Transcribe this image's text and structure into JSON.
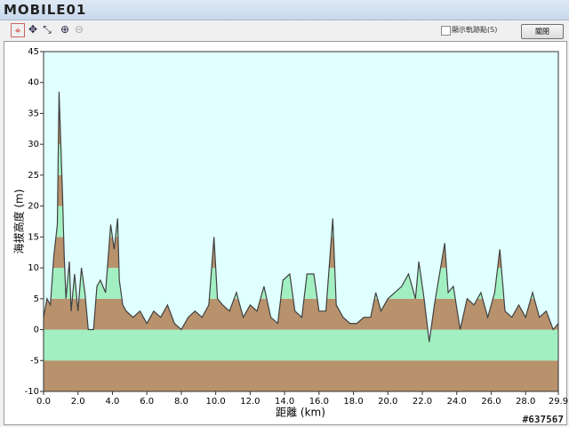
{
  "window": {
    "logo": "MOBILE01",
    "show_points": "顯示軌跡點(S)",
    "close": "關閉",
    "watermark": "#637567"
  },
  "chart_data": {
    "type": "area",
    "xlabel": "距離 (km)",
    "ylabel": "海拔高度 (m)",
    "x": [
      0,
      0.2,
      0.4,
      0.6,
      0.8,
      0.9,
      1.0,
      1.1,
      1.2,
      1.3,
      1.5,
      1.6,
      1.8,
      2.0,
      2.2,
      2.4,
      2.6,
      2.9,
      3.1,
      3.3,
      3.6,
      3.9,
      4.1,
      4.3,
      4.4,
      4.6,
      4.8,
      5.2,
      5.6,
      6.0,
      6.4,
      6.8,
      7.2,
      7.6,
      8.0,
      8.4,
      8.8,
      9.2,
      9.6,
      9.9,
      10.1,
      10.4,
      10.8,
      11.2,
      11.6,
      12.0,
      12.4,
      12.8,
      13.2,
      13.6,
      13.9,
      14.3,
      14.6,
      15.0,
      15.3,
      15.7,
      16.0,
      16.4,
      16.8,
      17.0,
      17.4,
      17.8,
      18.2,
      18.6,
      19.0,
      19.3,
      19.6,
      20.0,
      20.4,
      20.8,
      21.2,
      21.6,
      21.8,
      22.1,
      22.4,
      22.7,
      23.0,
      23.3,
      23.5,
      23.8,
      24.2,
      24.6,
      25.0,
      25.4,
      25.8,
      26.2,
      26.5,
      26.8,
      27.2,
      27.6,
      28.0,
      28.4,
      28.8,
      29.2,
      29.6,
      29.9
    ],
    "values": [
      2,
      5,
      4,
      12,
      17,
      38.5,
      30,
      22,
      12,
      5,
      11,
      3,
      9,
      3,
      10,
      6,
      0,
      0,
      7,
      8,
      6,
      17,
      13,
      18,
      8,
      4,
      3,
      2,
      3,
      1,
      3,
      2,
      4,
      1,
      0,
      2,
      3,
      2,
      4,
      15,
      5,
      4,
      3,
      6,
      2,
      4,
      3,
      7,
      2,
      1,
      8,
      9,
      3,
      2,
      9,
      9,
      3,
      3,
      18,
      4,
      2,
      1,
      1,
      2,
      2,
      6,
      3,
      5,
      6,
      7,
      9,
      5,
      11,
      5,
      -2,
      4,
      9,
      14,
      6,
      7,
      0,
      5,
      4,
      6,
      2,
      6,
      13,
      3,
      2,
      4,
      2,
      6,
      2,
      3,
      0,
      1
    ],
    "xlim": [
      0,
      29.9
    ],
    "xticks": [
      {
        "value": 0,
        "label": "0.0"
      },
      {
        "value": 2,
        "label": "2.0"
      },
      {
        "value": 4,
        "label": "4.0"
      },
      {
        "value": 6,
        "label": "6.0"
      },
      {
        "value": 8,
        "label": "8.0"
      },
      {
        "value": 10,
        "label": "10.0"
      },
      {
        "value": 12,
        "label": "12.0"
      },
      {
        "value": 14,
        "label": "14.0"
      },
      {
        "value": 16,
        "label": "16.0"
      },
      {
        "value": 18,
        "label": "18.0"
      },
      {
        "value": 20,
        "label": "20.0"
      },
      {
        "value": 22,
        "label": "22.0"
      },
      {
        "value": 24,
        "label": "24.0"
      },
      {
        "value": 26,
        "label": "26.0"
      },
      {
        "value": 28,
        "label": "28.0"
      },
      {
        "value": 29.9,
        "label": "29.9"
      }
    ],
    "ylim": [
      -10,
      45
    ],
    "yticks": [
      -10,
      -5,
      0,
      5,
      10,
      15,
      20,
      25,
      30,
      35,
      40,
      45
    ],
    "background": "#e0ffff",
    "line_color": "#404040",
    "band_colors": [
      "#b8926c",
      "#a2f0c2"
    ]
  }
}
